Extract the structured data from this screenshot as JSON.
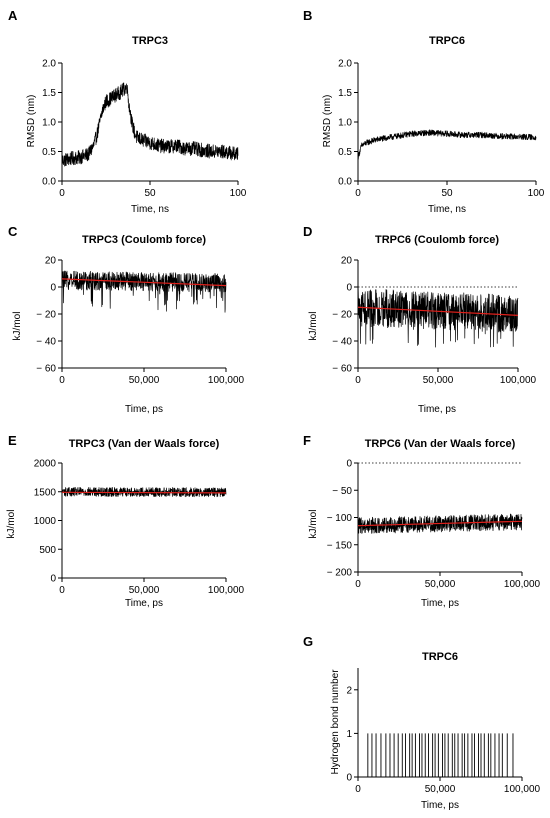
{
  "chart_data": [
    {
      "id": "A",
      "panel_label": "A",
      "type": "line",
      "title": "TRPC3",
      "xlabel": "Time, ns",
      "ylabel": "RMSD (nm)",
      "xlim": [
        0,
        100
      ],
      "ylim": [
        0.0,
        2.0
      ],
      "xticks": [
        0,
        50,
        100
      ],
      "xtick_labels": [
        "0",
        "50",
        "100"
      ],
      "yticks": [
        0.0,
        0.5,
        1.0,
        1.5,
        2.0
      ],
      "ytick_labels": [
        "0.0",
        "0.5",
        "1.0",
        "1.5",
        "2.0"
      ],
      "series": [
        {
          "values_x": [
            0,
            5,
            10,
            15,
            18,
            20,
            23,
            25,
            28,
            30,
            33,
            35,
            37,
            38,
            40,
            42,
            45,
            50,
            55,
            60,
            65,
            70,
            75,
            80,
            85,
            90,
            95,
            100
          ],
          "values_y": [
            0.35,
            0.38,
            0.4,
            0.45,
            0.6,
            0.8,
            1.2,
            1.35,
            1.4,
            1.45,
            1.5,
            1.55,
            1.6,
            1.3,
            0.95,
            0.75,
            0.7,
            0.65,
            0.6,
            0.58,
            0.6,
            0.55,
            0.55,
            0.52,
            0.5,
            0.5,
            0.48,
            0.45
          ],
          "noise": 0.12,
          "color": "#000000"
        }
      ],
      "dotted_zero": false,
      "trend": null
    },
    {
      "id": "B",
      "panel_label": "B",
      "type": "line",
      "title": "TRPC6",
      "xlabel": "Time, ns",
      "ylabel": "RMSD (nm)",
      "xlim": [
        0,
        100
      ],
      "ylim": [
        0.0,
        2.0
      ],
      "xticks": [
        0,
        50,
        100
      ],
      "xtick_labels": [
        "0",
        "50",
        "100"
      ],
      "yticks": [
        0.0,
        0.5,
        1.0,
        1.5,
        2.0
      ],
      "ytick_labels": [
        "0.0",
        "0.5",
        "1.0",
        "1.5",
        "2.0"
      ],
      "series": [
        {
          "values_x": [
            0,
            2,
            5,
            10,
            20,
            30,
            40,
            50,
            60,
            70,
            80,
            90,
            100
          ],
          "values_y": [
            0.4,
            0.6,
            0.65,
            0.7,
            0.75,
            0.8,
            0.82,
            0.8,
            0.78,
            0.78,
            0.76,
            0.75,
            0.74
          ],
          "noise": 0.05,
          "color": "#000000"
        }
      ],
      "dotted_zero": false,
      "trend": null
    },
    {
      "id": "C",
      "panel_label": "C",
      "type": "line",
      "title": "TRPC3 (Coulomb force)",
      "xlabel": "Time, ps",
      "ylabel": "kJ/mol",
      "xlim": [
        0,
        100000
      ],
      "ylim": [
        -60,
        20
      ],
      "xticks": [
        0,
        50000,
        100000
      ],
      "xtick_labels": [
        "0",
        "50,000",
        "100,000"
      ],
      "yticks": [
        -60,
        -40,
        -20,
        0,
        20
      ],
      "ytick_labels": [
        "− 60",
        "− 40",
        "− 20",
        "0",
        "20"
      ],
      "series": [
        {
          "values_x": [
            0,
            100000
          ],
          "values_y": [
            5,
            3
          ],
          "noise": 7,
          "spike_depth": 22,
          "color": "#000000"
        }
      ],
      "dotted_zero": false,
      "trend": {
        "x": [
          0,
          100000
        ],
        "y": [
          6,
          1
        ],
        "color": "#e0201b"
      }
    },
    {
      "id": "D",
      "panel_label": "D",
      "type": "line",
      "title": "TRPC6 (Coulomb force)",
      "xlabel": "Time, ps",
      "ylabel": "kJ/mol",
      "xlim": [
        0,
        100000
      ],
      "ylim": [
        -60,
        20
      ],
      "xticks": [
        0,
        50000,
        100000
      ],
      "xtick_labels": [
        "0",
        "50,000",
        "100,000"
      ],
      "yticks": [
        -60,
        -40,
        -20,
        0,
        20
      ],
      "ytick_labels": [
        "− 60",
        "− 40",
        "− 20",
        "0",
        "20"
      ],
      "series": [
        {
          "values_x": [
            0,
            100000
          ],
          "values_y": [
            -15,
            -20
          ],
          "noise": 14,
          "spike_depth": 28,
          "clip_top": 0,
          "color": "#000000"
        }
      ],
      "dotted_zero": true,
      "trend": {
        "x": [
          0,
          100000
        ],
        "y": [
          -15,
          -21
        ],
        "color": "#e0201b"
      }
    },
    {
      "id": "E",
      "panel_label": "E",
      "type": "line",
      "title": "TRPC3 (Van der Waals force)",
      "xlabel": "Time, ps",
      "ylabel": "kJ/mol",
      "xlim": [
        0,
        100000
      ],
      "ylim": [
        0,
        2000
      ],
      "xticks": [
        0,
        50000,
        100000
      ],
      "xtick_labels": [
        "0",
        "50,000",
        "100,000"
      ],
      "yticks": [
        0,
        500,
        1000,
        1500,
        2000
      ],
      "ytick_labels": [
        "0",
        "500",
        "1000",
        "1500",
        "2000"
      ],
      "series": [
        {
          "values_x": [
            0,
            100000
          ],
          "values_y": [
            1500,
            1490
          ],
          "noise": 80,
          "color": "#000000"
        }
      ],
      "dotted_zero": false,
      "trend": {
        "x": [
          0,
          100000
        ],
        "y": [
          1490,
          1480
        ],
        "color": "#e0201b"
      }
    },
    {
      "id": "F",
      "panel_label": "F",
      "type": "line",
      "title": "TRPC6 (Van der Waals force)",
      "xlabel": "Time, ps",
      "ylabel": "kJ/mol",
      "xlim": [
        0,
        100000
      ],
      "ylim": [
        -200,
        0
      ],
      "xticks": [
        0,
        50000,
        100000
      ],
      "xtick_labels": [
        "0",
        "50,000",
        "100,000"
      ],
      "yticks": [
        -200,
        -150,
        -100,
        -50,
        0
      ],
      "ytick_labels": [
        "− 200",
        "− 150",
        "− 100",
        "− 50",
        "0"
      ],
      "series": [
        {
          "values_x": [
            0,
            100000
          ],
          "values_y": [
            -115,
            -108
          ],
          "noise": 15,
          "color": "#000000"
        }
      ],
      "dotted_zero": true,
      "trend": {
        "x": [
          0,
          100000
        ],
        "y": [
          -115,
          -107
        ],
        "color": "#e0201b"
      }
    },
    {
      "id": "G",
      "panel_label": "G",
      "type": "bar",
      "title": "TRPC6",
      "xlabel": "Time, ps",
      "ylabel": "Hydrogen bond number",
      "xlim": [
        0,
        100000
      ],
      "ylim": [
        0,
        2.5
      ],
      "xticks": [
        0,
        50000,
        100000
      ],
      "xtick_labels": [
        "0",
        "50,000",
        "100,000"
      ],
      "yticks": [
        0,
        1,
        2
      ],
      "ytick_labels": [
        "0",
        "1",
        "2"
      ],
      "events_x": [
        6000,
        8500,
        11000,
        14000,
        17000,
        19500,
        22000,
        24500,
        27000,
        29000,
        31500,
        33000,
        35000,
        37500,
        39000,
        41000,
        43000,
        45500,
        47000,
        49000,
        51500,
        53000,
        55000,
        57500,
        59000,
        61000,
        63500,
        65000,
        67000,
        69500,
        71000,
        73500,
        75000,
        77000,
        79500,
        81000,
        83500,
        86000,
        88000,
        91000,
        94500
      ],
      "event_value": 1,
      "dotted_zero": false,
      "trend": null
    }
  ]
}
